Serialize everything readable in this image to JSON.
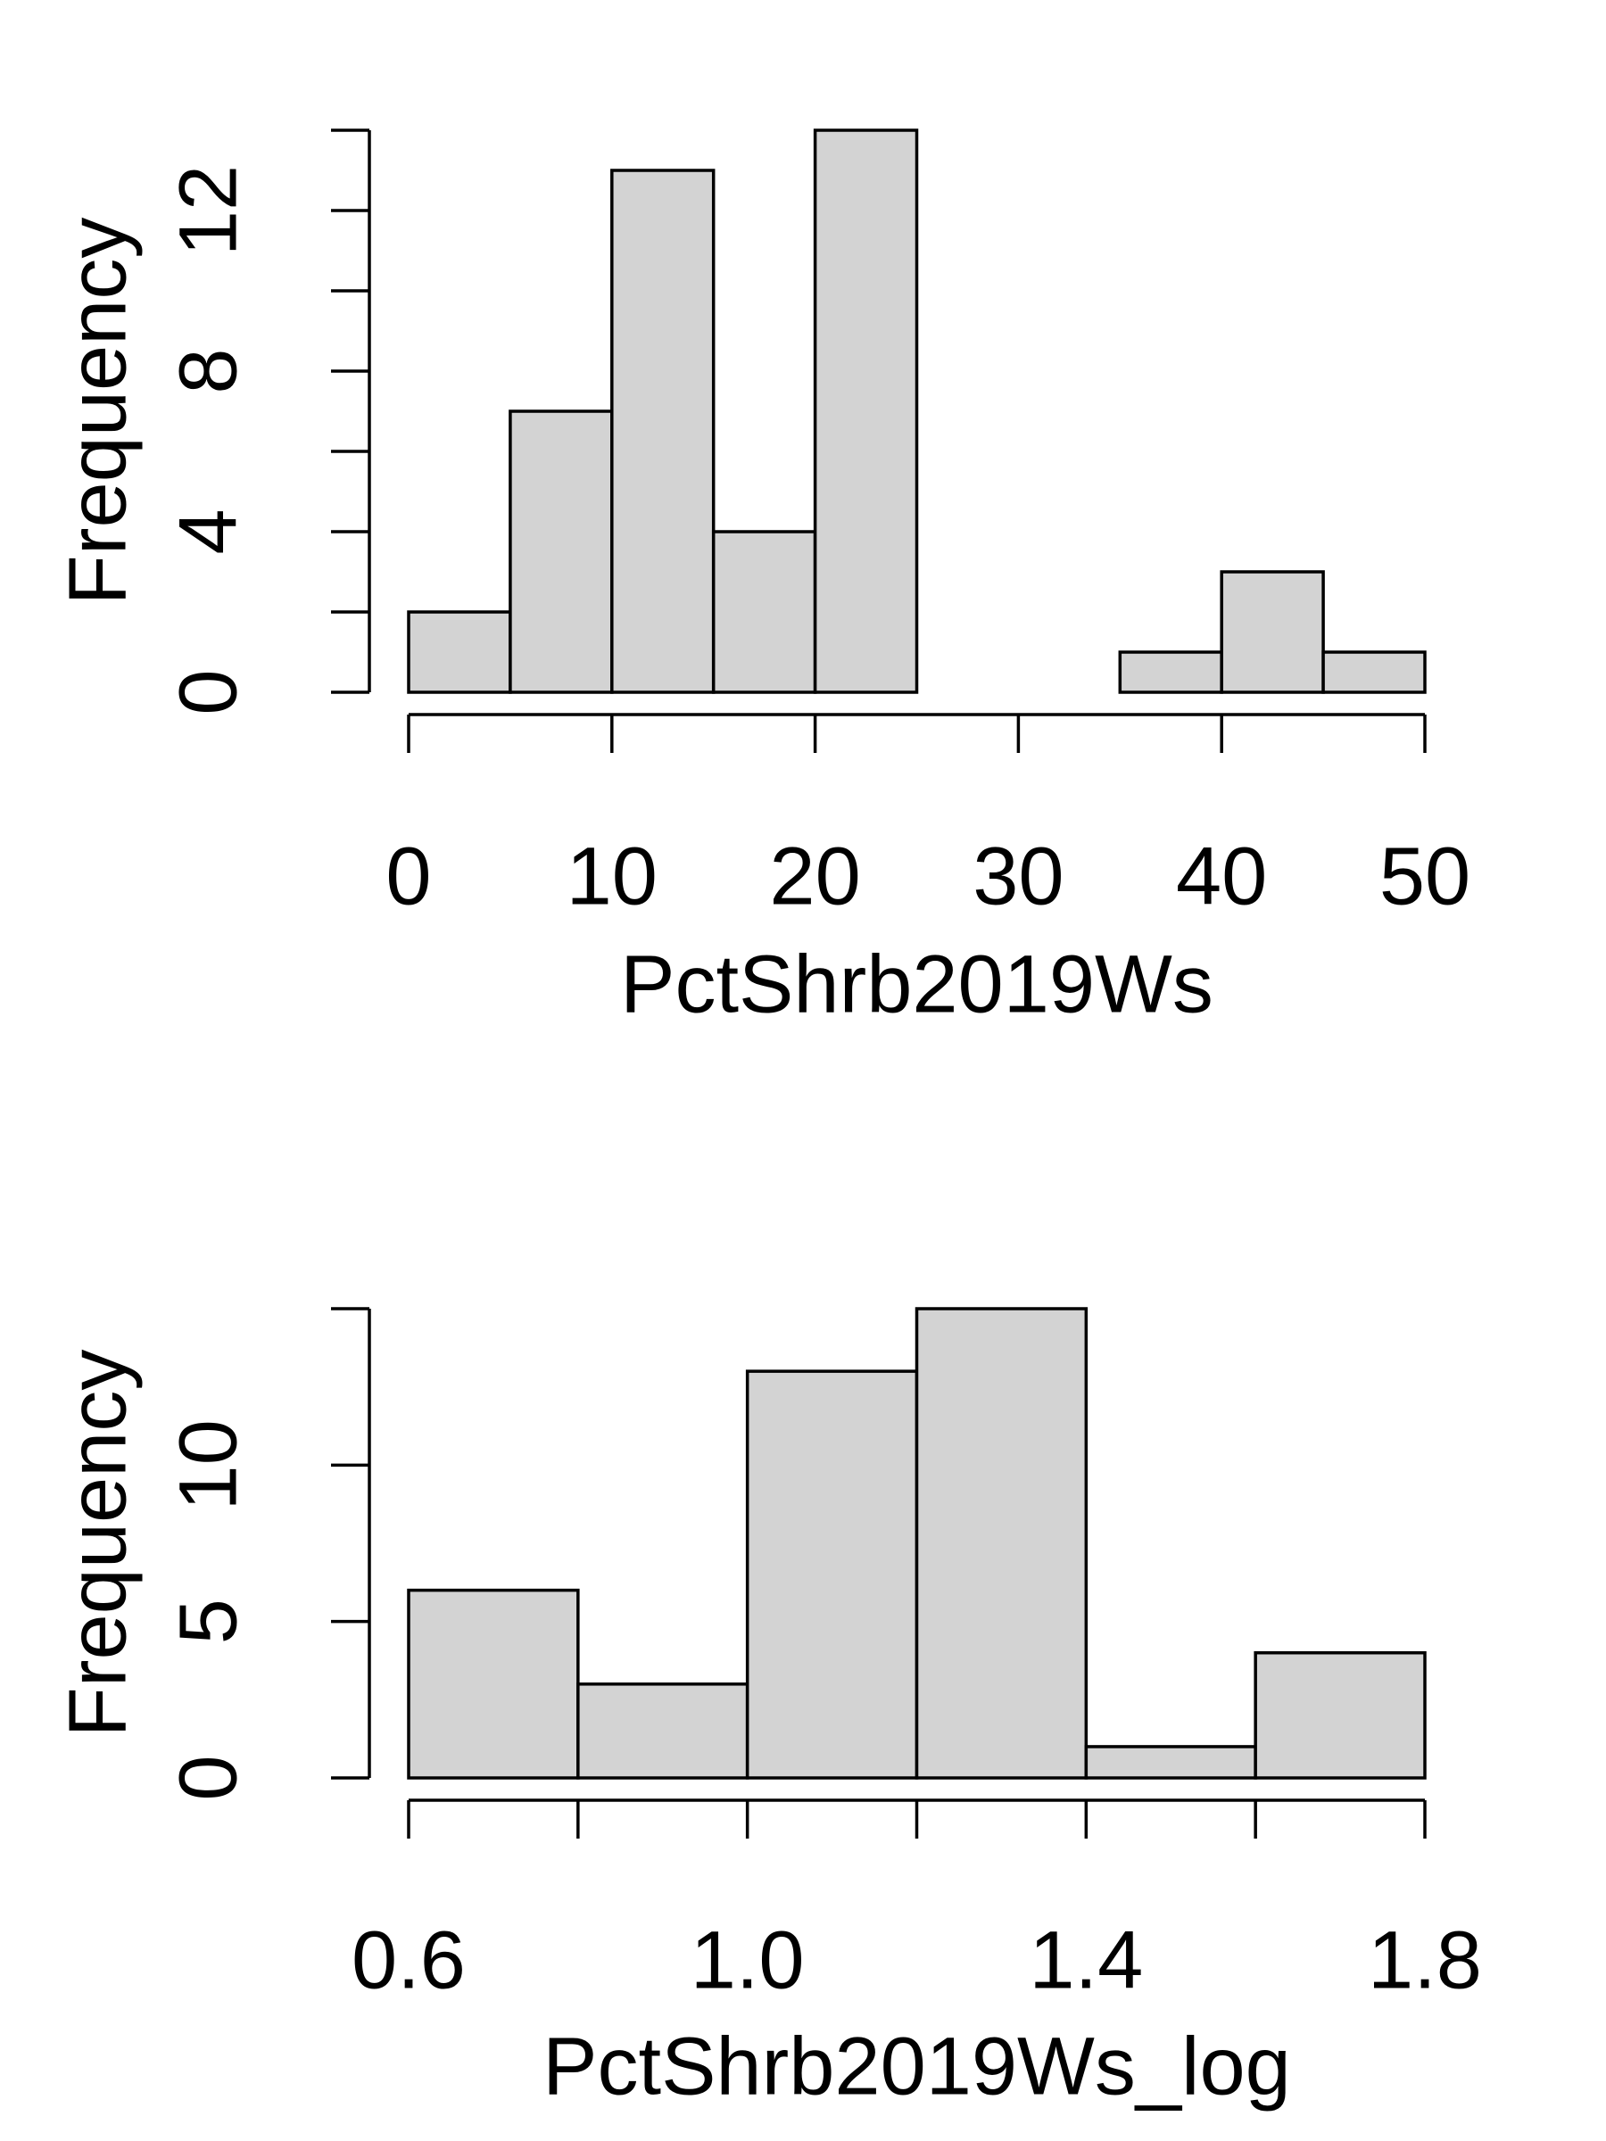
{
  "chart_data": [
    {
      "type": "histogram",
      "xlabel": "PctShrb2019Ws",
      "ylabel": "Frequency",
      "bins": [
        0,
        5,
        10,
        15,
        20,
        25,
        30,
        35,
        40,
        45,
        50
      ],
      "values": [
        2,
        7,
        13,
        4,
        14,
        0,
        0,
        1,
        3,
        1
      ],
      "color": "#d3d3d3",
      "xlim": [
        0,
        50
      ],
      "ylim": [
        0,
        14
      ],
      "xticks": [
        0,
        10,
        20,
        30,
        40,
        50
      ],
      "yticks": [
        0,
        4,
        8,
        12
      ],
      "y_minor_ticks": [
        2,
        6,
        10,
        14
      ]
    },
    {
      "type": "histogram",
      "xlabel": "PctShrb2019Ws_log",
      "ylabel": "Frequency",
      "bins": [
        0.6,
        0.8,
        1.0,
        1.2,
        1.4,
        1.6,
        1.8
      ],
      "values": [
        6,
        3,
        13,
        15,
        1,
        4
      ],
      "color": "#d3d3d3",
      "xlim": [
        0.6,
        1.8
      ],
      "ylim": [
        0,
        15
      ],
      "xticks": [
        0.6,
        {
          "value": 1,
          "label": "1.0"
        },
        1.4,
        1.8
      ],
      "x_minor_ticks": [
        0.8,
        1.2,
        1.6
      ],
      "yticks": [
        0,
        5,
        10
      ],
      "y_minor_ticks": [
        15
      ]
    }
  ]
}
